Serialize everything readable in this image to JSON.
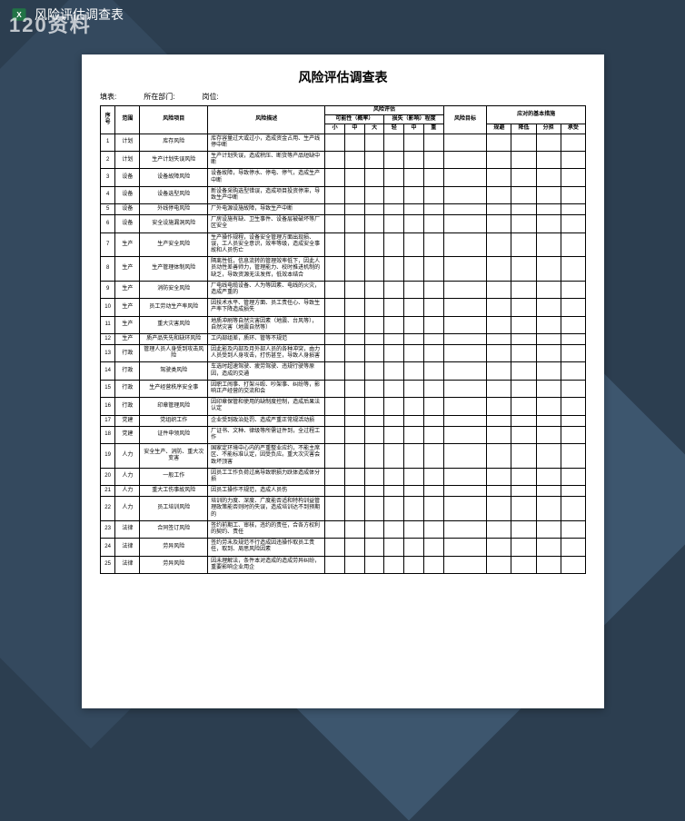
{
  "titlebar": {
    "filename": "风险评估调查表"
  },
  "watermark": "120资料",
  "doc": {
    "title": "风险评估调查表",
    "header_labels": {
      "filler": "填表:",
      "dept": "所在部门:",
      "position": "岗位:"
    }
  },
  "table": {
    "head": {
      "seq": "序号",
      "scope": "范围",
      "project": "风险项目",
      "desc": "风险描述",
      "eval_group": "风险评估",
      "prob_group": "可能性（概率）",
      "loss_group": "损失（影响）程度",
      "goal": "风险目标",
      "measure_group": "应对的基本措施",
      "prob_sub": [
        "小",
        "中",
        "大"
      ],
      "loss_sub": [
        "轻",
        "中",
        "重"
      ],
      "measure_sub": [
        "规避",
        "降低",
        "分担",
        "承受"
      ]
    },
    "rows": [
      {
        "seq": "1",
        "scope": "计划",
        "project": "库存风险",
        "desc": "库存容量过大或过小，造成资金占用、生产线停中断"
      },
      {
        "seq": "2",
        "scope": "计划",
        "project": "生产计划失误风险",
        "desc": "生产计划失误，造成积压、断货等产品短缺中断"
      },
      {
        "seq": "3",
        "scope": "设备",
        "project": "设备故障风险",
        "desc": "设备故障，导致停水、停电、停气，造成生产中断"
      },
      {
        "seq": "4",
        "scope": "设备",
        "project": "设备选型风险",
        "desc": "新设备采购选型错误，造成项目投资停滞，导致生产中断"
      },
      {
        "seq": "5",
        "scope": "设备",
        "project": "外线停电风险",
        "desc": "厂外电源设施故障，导致生产中断"
      },
      {
        "seq": "6",
        "scope": "设备",
        "project": "安全设施漏洞风险",
        "desc": "厂房设施有缺、卫生事件、设备层被破坏等厂区安全"
      },
      {
        "seq": "7",
        "scope": "生产",
        "project": "生产安全风险",
        "desc": "生产操作规程，设备安全管理方面出现损、误，工人员安全意识，效率等级，造成安全事故和人员伤亡"
      },
      {
        "seq": "8",
        "scope": "生产",
        "project": "生产管理体制风险",
        "desc": "隔离性低，信息流转的管理效率低下，因此人员动性差善师力，管理能力、校时推进机制的缺乏，导致资源无法发挥，低效本结合"
      },
      {
        "seq": "9",
        "scope": "生产",
        "project": "消防安全风险",
        "desc": "厂电线电缆设备、人为等因素、电线的火灾，造成严重的"
      },
      {
        "seq": "10",
        "scope": "生产",
        "project": "员工劳动生产率风险",
        "desc": "因技术水平、管理方面、员工责任心、导致生产率下降造成损失"
      },
      {
        "seq": "11",
        "scope": "生产",
        "project": "重大灾害风险",
        "desc": "地质冲刷等自然灾害因素（地震、台风等），自然灾害（地震自然等）"
      },
      {
        "seq": "12",
        "scope": "生产",
        "project": "质产品失先和缺环风险",
        "desc": "工内部组差，质环、管等不规范"
      },
      {
        "seq": "13",
        "scope": "行政",
        "project": "管理人员人身受到攻击风险",
        "desc": "因此影及内部及月外部人员的各种冲突，由力人员受到人身攻击，打伤甚至，导致人身损害"
      },
      {
        "seq": "14",
        "scope": "行政",
        "project": "驾驶类风险",
        "desc": "车选时超速驾驶、疲劳驾驶、违规行驶等原因，造成的交通"
      },
      {
        "seq": "15",
        "scope": "行政",
        "project": "生产经营秩序安全事",
        "desc": "因职工闹事、打架斗殴、吵架事、纠纷等，影响正产经营的交流和会"
      },
      {
        "seq": "16",
        "scope": "行政",
        "project": "印章管理风险",
        "desc": "因印章保管和使用的缺制度控制，造成后果法认定"
      },
      {
        "seq": "17",
        "scope": "党建",
        "project": "党组织工作",
        "desc": "企业受到政治处罚、造成严重正常规活动损"
      },
      {
        "seq": "18",
        "scope": "党建",
        "project": "证件申领风险",
        "desc": "厂证书、文种、律级等所需证件到，全过程工作"
      },
      {
        "seq": "19",
        "scope": "人力",
        "project": "安全生产、消防、重大次变害",
        "desc": "国家定环境中心内的严重整业应约，不能主席区、不能标准认定，因受负应。重大次灾害会致坏顶害"
      },
      {
        "seq": "20",
        "scope": "人力",
        "project": "一般工作",
        "desc": "因员工工作负荷过高导致职损力跃体造成体分损"
      },
      {
        "seq": "21",
        "scope": "人力",
        "project": "重大工伤事故风险",
        "desc": "因员工操作不规范，造成人员伤"
      },
      {
        "seq": "22",
        "scope": "人力",
        "project": "员工培训风险",
        "desc": "培训的力度、深度、广度能否适和特构训益管理政策能否则时的失误，造成培训达不到预期的"
      },
      {
        "seq": "23",
        "scope": "法律",
        "project": "合同签订风险",
        "desc": "签约前期工、审核，违约的责任，合各方权利的契约、责任"
      },
      {
        "seq": "24",
        "scope": "法律",
        "project": "劳异风险",
        "desc": "签约劳未及规范不行造成因违操作取员工责任，取到、周思风险因素"
      },
      {
        "seq": "25",
        "scope": "法律",
        "project": "劳异风险",
        "desc": "因未理解法，条件本对造成的造成劳异纠纷，重要影响企业用企"
      }
    ]
  }
}
